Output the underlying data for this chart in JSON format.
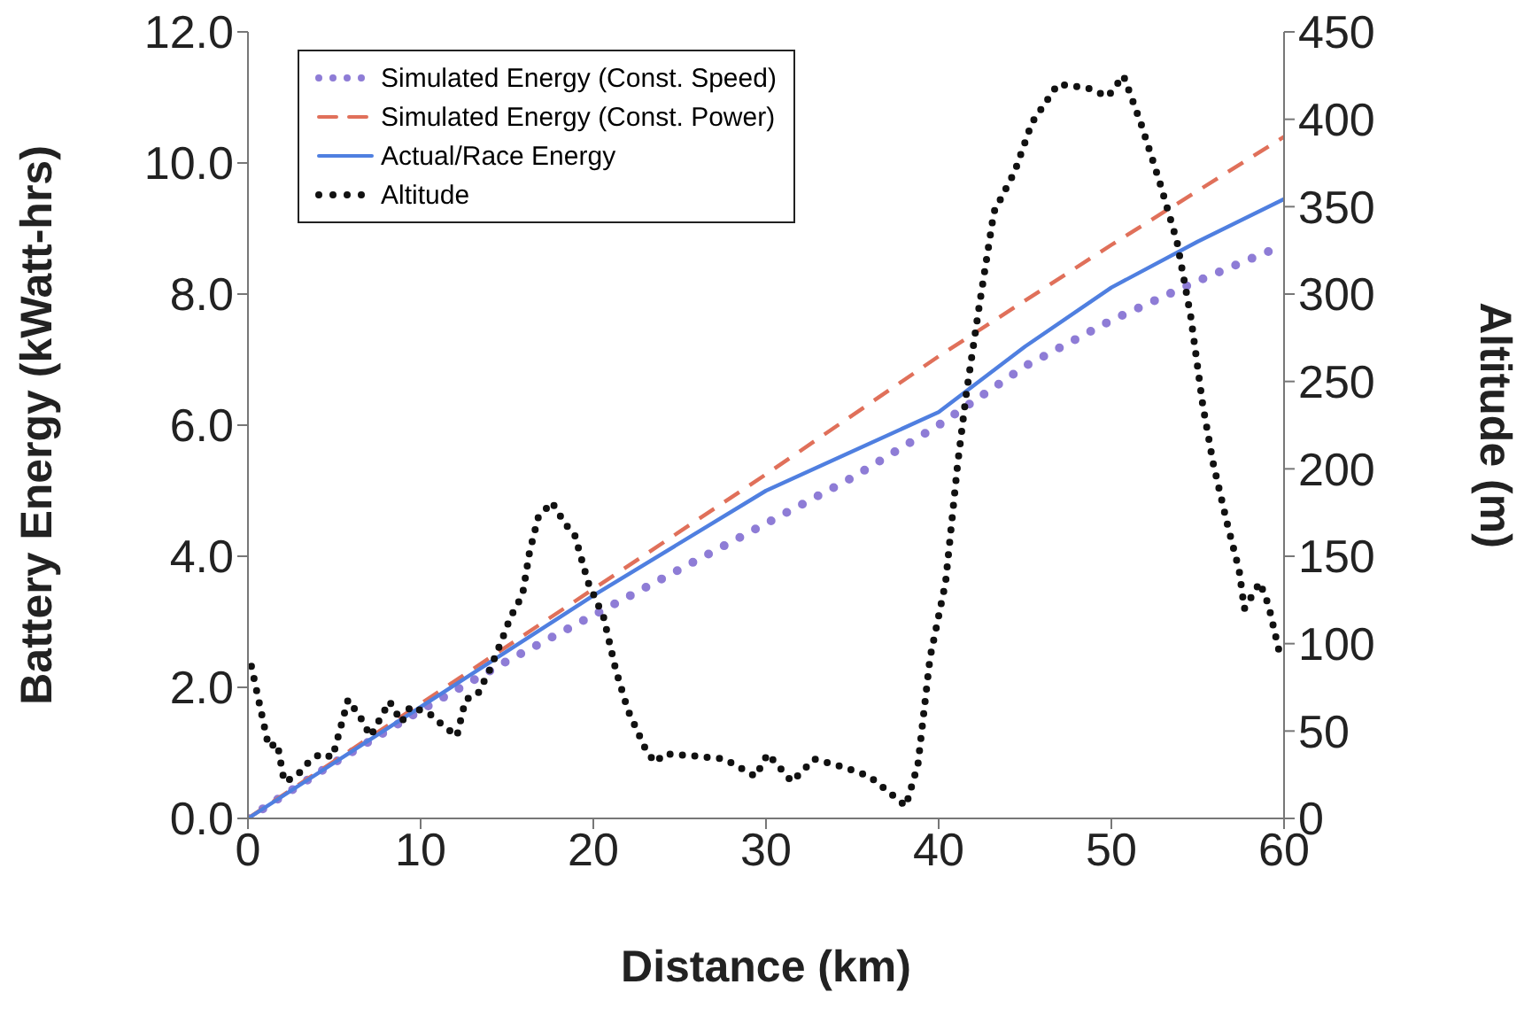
{
  "chart_data": {
    "type": "line",
    "xlabel": "Distance (km)",
    "ylabel": "Battery Energy (kWatt-hrs)",
    "y2label": "Altitude (m)",
    "xlim": [
      0,
      60
    ],
    "xticks": [
      0,
      10,
      20,
      30,
      40,
      50,
      60
    ],
    "ylim": [
      0,
      12
    ],
    "yticks": [
      {
        "value": 0,
        "label": "0.0"
      },
      {
        "value": 2,
        "label": "2.0"
      },
      {
        "value": 4,
        "label": "4.0"
      },
      {
        "value": 6,
        "label": "6.0"
      },
      {
        "value": 8,
        "label": "8.0"
      },
      {
        "value": 10,
        "label": "10.0"
      },
      {
        "value": 12,
        "label": "12.0"
      }
    ],
    "y2lim": [
      0,
      450
    ],
    "y2ticks": [
      0,
      50,
      100,
      150,
      200,
      250,
      300,
      350,
      400,
      450
    ],
    "grid": false,
    "legend": "top left",
    "marker": "none",
    "series": [
      {
        "name": "Simulated Energy (Const. Speed)",
        "color": "#8e7cd6",
        "line_style": "dotted",
        "x": [
          0,
          5,
          10,
          15,
          20,
          25,
          30,
          35,
          40,
          45,
          50,
          55,
          60
        ],
        "values": [
          0,
          0.85,
          1.65,
          2.4,
          3.1,
          3.8,
          4.5,
          5.2,
          6.0,
          6.9,
          7.6,
          8.2,
          8.75
        ]
      },
      {
        "name": "Simulated Energy (Const. Power)",
        "color": "#e0705a",
        "line_style": "dashed",
        "x": [
          0,
          10,
          20,
          30,
          40,
          50,
          60
        ],
        "values": [
          0,
          1.75,
          3.5,
          5.25,
          7.05,
          8.75,
          10.4
        ]
      },
      {
        "name": "Actual/Race Energy",
        "color": "#4f7fe0",
        "line_style": "solid",
        "x": [
          0,
          10,
          20,
          30,
          40,
          45,
          50,
          55,
          60
        ],
        "values": [
          0,
          1.7,
          3.4,
          5.0,
          6.2,
          7.2,
          8.1,
          8.8,
          9.45
        ]
      },
      {
        "name": "Altitude",
        "color": "#111111",
        "line_style": "dotted",
        "axis": "y2",
        "x": [
          0.2,
          0.7,
          1.2,
          1.7,
          2.1,
          2.8,
          3.5,
          4.2,
          4.9,
          5.8,
          6.5,
          7.1,
          8.2,
          8.9,
          9.4,
          10.5,
          11.2,
          12.1,
          12.6,
          13.3,
          14.0,
          14.7,
          15.2,
          15.9,
          16.3,
          16.8,
          17.6,
          18.4,
          18.9,
          19.7,
          20.6,
          21.3,
          22.0,
          23.1,
          23.6,
          24.1,
          25.6,
          27.6,
          29.4,
          30.1,
          31.5,
          32.8,
          34.6,
          36.0,
          37.0,
          38.1,
          38.8,
          39.5,
          40.4,
          41.1,
          41.6,
          42.3,
          43.2,
          44.4,
          45.4,
          46.9,
          48.6,
          49.8,
          50.7,
          51.7,
          52.8,
          53.8,
          54.6,
          55.3,
          55.9,
          56.7,
          57.4,
          57.7,
          58.6,
          59.1,
          59.8
        ],
        "values": [
          87,
          64,
          41,
          43,
          21,
          24,
          32,
          37,
          35,
          68,
          58,
          47,
          67,
          55,
          64,
          60,
          54,
          47,
          68,
          71,
          85,
          102,
          115,
          128,
          152,
          172,
          181,
          168,
          163,
          135,
          115,
          85,
          62,
          38,
          32,
          37,
          36,
          34,
          24,
          37,
          21,
          34,
          29,
          24,
          16,
          7,
          31,
          92,
          135,
          203,
          243,
          290,
          347,
          370,
          398,
          420,
          418,
          413,
          425,
          398,
          364,
          330,
          287,
          236,
          203,
          169,
          142,
          120,
          135,
          122,
          92
        ]
      }
    ]
  }
}
